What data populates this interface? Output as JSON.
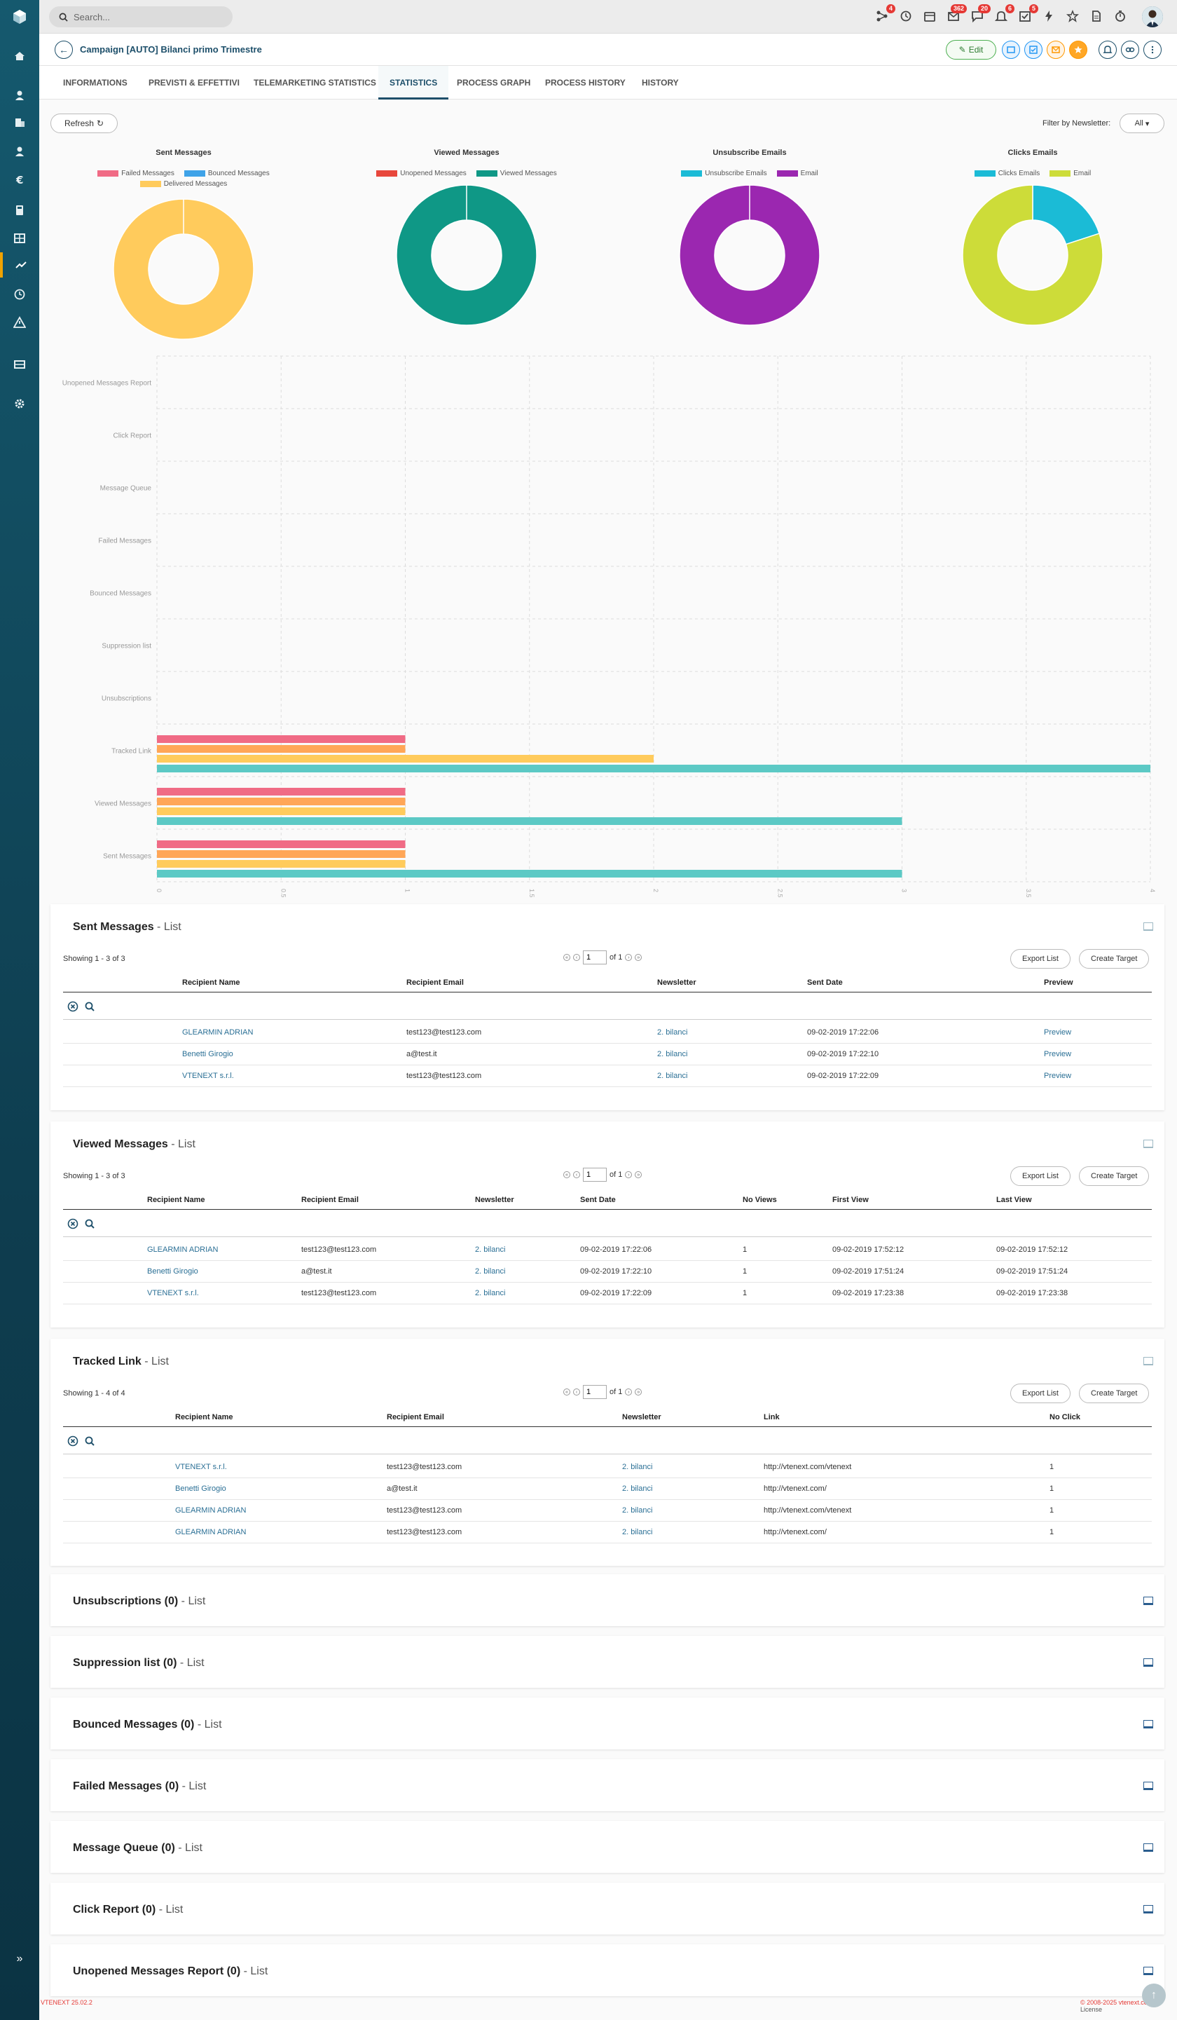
{
  "search": {
    "placeholder": "Search..."
  },
  "topbar_badges": {
    "processes": "4",
    "messages": "362",
    "chat": "20",
    "notifications": "6",
    "tasks": "5"
  },
  "record": {
    "title": "Campaign [AUTO] Bilanci primo Trimestre",
    "edit_label": "Edit"
  },
  "tabs": [
    {
      "label": "INFORMATIONS"
    },
    {
      "label": "PREVISTI & EFFETTIVI"
    },
    {
      "label": "TELEMARKETING STATISTICS"
    },
    {
      "label": "STATISTICS"
    },
    {
      "label": "PROCESS GRAPH"
    },
    {
      "label": "PROCESS HISTORY"
    },
    {
      "label": "HISTORY"
    }
  ],
  "toolbar": {
    "refresh_label": "Refresh",
    "filter_label": "Filter by Newsletter:",
    "filter_value": "All"
  },
  "colors": {
    "brand": "#1d4f6a",
    "accent": "#f0a300"
  },
  "chart_data": [
    {
      "type": "pie",
      "title": "Sent Messages",
      "labels": [
        "Failed Messages",
        "Bounced Messages",
        "Delivered Messages"
      ],
      "values": [
        0,
        0,
        3
      ],
      "colors": [
        "#f06b85",
        "#3fa3e8",
        "#ffcb5c"
      ]
    },
    {
      "type": "pie",
      "title": "Viewed Messages",
      "labels": [
        "Unopened Messages",
        "Viewed Messages"
      ],
      "values": [
        0,
        3
      ],
      "colors": [
        "#e8473c",
        "#0f9886"
      ]
    },
    {
      "type": "pie",
      "title": "Unsubscribe Emails",
      "labels": [
        "Unsubscribe Emails",
        "Email"
      ],
      "values": [
        0,
        3
      ],
      "colors": [
        "#1bbbd6",
        "#9b27b0"
      ]
    },
    {
      "type": "pie",
      "title": "Clicks Emails",
      "labels": [
        "Clicks Emails",
        "Email"
      ],
      "values": [
        1,
        4
      ],
      "colors": [
        "#1bbbd6",
        "#cddc39"
      ]
    },
    {
      "type": "bar",
      "orientation": "horizontal",
      "categories": [
        "Unopened Messages Report",
        "Click Report",
        "Message Queue",
        "Failed Messages",
        "Bounced Messages",
        "Suppression list",
        "Unsubscriptions",
        "Tracked Link",
        "Viewed Messages",
        "Sent Messages"
      ],
      "xticks": [
        "0",
        "0.5",
        "1",
        "1.5",
        "2",
        "2.5",
        "3",
        "3.5",
        "4"
      ],
      "xlim": [
        0,
        4
      ],
      "grid": true,
      "series": [
        {
          "color": "#f06b85",
          "values": [
            0,
            0,
            0,
            0,
            0,
            0,
            0,
            1,
            1,
            1
          ]
        },
        {
          "color": "#ffa657",
          "values": [
            0,
            0,
            0,
            0,
            0,
            0,
            0,
            1,
            1,
            1
          ]
        },
        {
          "color": "#ffcb5c",
          "values": [
            0,
            0,
            0,
            0,
            0,
            0,
            0,
            2,
            1,
            1
          ]
        },
        {
          "color": "#5cc9c5",
          "values": [
            0,
            0,
            0,
            0,
            0,
            0,
            0,
            4,
            3,
            3
          ]
        }
      ]
    }
  ],
  "sent_messages": {
    "title": "Sent Messages",
    "suffix": " - List",
    "showing": "Showing 1 - 3 of 3",
    "page": "1",
    "of": "of 1",
    "export_label": "Export List",
    "create_label": "Create Target",
    "columns": [
      "Recipient Name",
      "Recipient Email",
      "Newsletter",
      "Sent Date",
      "Preview"
    ],
    "rows": [
      [
        "GLEARMIN ADRIAN",
        "test123@test123.com",
        "2. bilanci",
        "09-02-2019 17:22:06",
        "Preview"
      ],
      [
        "Benetti Girogio",
        "a@test.it",
        "2. bilanci",
        "09-02-2019 17:22:10",
        "Preview"
      ],
      [
        "VTENEXT s.r.l.",
        "test123@test123.com",
        "2. bilanci",
        "09-02-2019 17:22:09",
        "Preview"
      ]
    ]
  },
  "viewed_messages": {
    "title": "Viewed Messages",
    "suffix": " - List",
    "showing": "Showing 1 - 3 of 3",
    "page": "1",
    "of": "of 1",
    "export_label": "Export List",
    "create_label": "Create Target",
    "columns": [
      "Recipient Name",
      "Recipient Email",
      "Newsletter",
      "Sent Date",
      "No Views",
      "First View",
      "Last View"
    ],
    "rows": [
      [
        "GLEARMIN ADRIAN",
        "test123@test123.com",
        "2. bilanci",
        "09-02-2019 17:22:06",
        "1",
        "09-02-2019 17:52:12",
        "09-02-2019 17:52:12"
      ],
      [
        "Benetti Girogio",
        "a@test.it",
        "2. bilanci",
        "09-02-2019 17:22:10",
        "1",
        "09-02-2019 17:51:24",
        "09-02-2019 17:51:24"
      ],
      [
        "VTENEXT s.r.l.",
        "test123@test123.com",
        "2. bilanci",
        "09-02-2019 17:22:09",
        "1",
        "09-02-2019 17:23:38",
        "09-02-2019 17:23:38"
      ]
    ]
  },
  "tracked_link": {
    "title": "Tracked Link",
    "suffix": " - List",
    "showing": "Showing 1 - 4 of 4",
    "page": "1",
    "of": "of 1",
    "export_label": "Export List",
    "create_label": "Create Target",
    "columns": [
      "Recipient Name",
      "Recipient Email",
      "Newsletter",
      "Link",
      "No Click"
    ],
    "rows": [
      [
        "VTENEXT s.r.l.",
        "test123@test123.com",
        "2. bilanci",
        "http://vtenext.com/vtenext",
        "1"
      ],
      [
        "Benetti Girogio",
        "a@test.it",
        "2. bilanci",
        "http://vtenext.com/",
        "1"
      ],
      [
        "GLEARMIN ADRIAN",
        "test123@test123.com",
        "2. bilanci",
        "http://vtenext.com/vtenext",
        "1"
      ],
      [
        "GLEARMIN ADRIAN",
        "test123@test123.com",
        "2. bilanci",
        "http://vtenext.com/",
        "1"
      ]
    ]
  },
  "collapsed_panels": [
    {
      "title": "Unsubscriptions (0)",
      "suffix": " - List"
    },
    {
      "title": "Suppression list (0)",
      "suffix": " - List"
    },
    {
      "title": "Bounced Messages (0)",
      "suffix": " - List"
    },
    {
      "title": "Failed Messages (0)",
      "suffix": " - List"
    },
    {
      "title": "Message Queue (0)",
      "suffix": " - List"
    },
    {
      "title": "Click Report (0)",
      "suffix": " - List"
    },
    {
      "title": "Unopened Messages Report (0)",
      "suffix": " - List"
    }
  ],
  "footer": {
    "version": "VTENEXT 25.02.2",
    "copyright": "© 2008-2025 vtenext.com",
    "license": " | License"
  }
}
